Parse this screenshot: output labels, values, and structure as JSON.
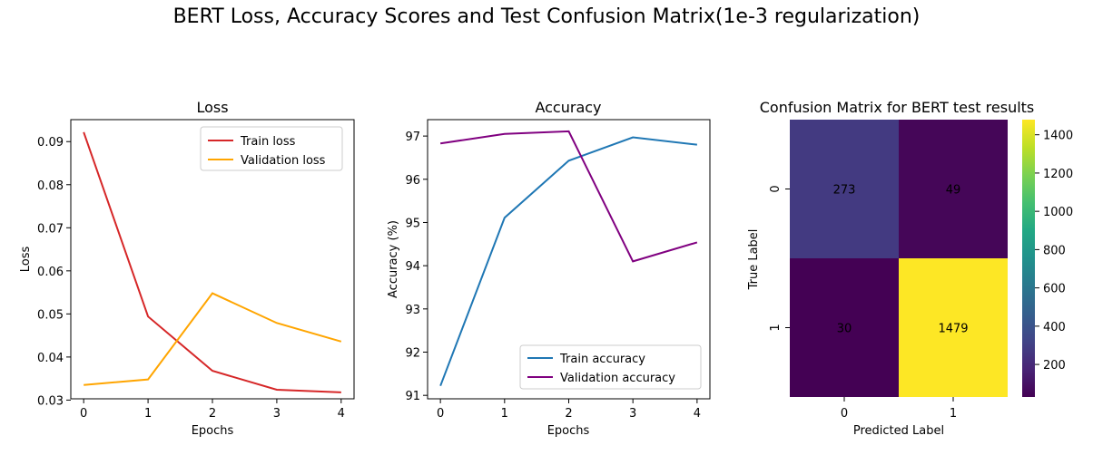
{
  "suptitle": "BERT Loss, Accuracy Scores and Test Confusion Matrix(1e-3 regularization)",
  "chart_data": [
    {
      "type": "line",
      "title": "Loss",
      "xlabel": "Epochs",
      "ylabel": "Loss",
      "x": [
        0,
        1,
        2,
        3,
        4
      ],
      "xticks": [
        "0",
        "1",
        "2",
        "3",
        "4"
      ],
      "yticks": [
        "0.03",
        "0.04",
        "0.05",
        "0.06",
        "0.07",
        "0.08",
        "0.09"
      ],
      "xlim": [
        -0.2,
        4.2
      ],
      "ylim": [
        0.0303,
        0.0951
      ],
      "grid": false,
      "legend": "top-right",
      "series": [
        {
          "name": "Train loss",
          "color": "#d62728",
          "values": [
            0.0922,
            0.0494,
            0.0368,
            0.0324,
            0.0318
          ]
        },
        {
          "name": "Validation loss",
          "color": "#ffa500",
          "values": [
            0.0335,
            0.0348,
            0.0548,
            0.0479,
            0.0436
          ]
        }
      ]
    },
    {
      "type": "line",
      "title": "Accuracy",
      "xlabel": "Epochs",
      "ylabel": "Accuracy (%)",
      "x": [
        0,
        1,
        2,
        3,
        4
      ],
      "xticks": [
        "0",
        "1",
        "2",
        "3",
        "4"
      ],
      "yticks": [
        "91",
        "92",
        "93",
        "94",
        "95",
        "96",
        "97"
      ],
      "xlim": [
        -0.2,
        4.2
      ],
      "ylim": [
        90.92,
        97.38
      ],
      "grid": false,
      "legend": "bottom-right",
      "series": [
        {
          "name": "Train accuracy",
          "color": "#1f77b4",
          "values": [
            91.22,
            95.11,
            96.43,
            96.97,
            96.8
          ]
        },
        {
          "name": "Validation accuracy",
          "color": "#800080",
          "values": [
            96.83,
            97.05,
            97.11,
            94.1,
            94.54
          ]
        }
      ]
    },
    {
      "type": "heatmap",
      "title": "Confusion Matrix for BERT test results",
      "xlabel": "Predicted Label",
      "ylabel": "True Label",
      "xticks": [
        "0",
        "1"
      ],
      "yticks": [
        "0",
        "1"
      ],
      "values": [
        [
          273,
          49
        ],
        [
          30,
          1479
        ]
      ],
      "colormap": "viridis",
      "colorbar_ticks": [
        "200",
        "400",
        "600",
        "800",
        "1000",
        "1200",
        "1400"
      ],
      "colorbar_range": [
        30,
        1479
      ],
      "cell_text_colors": {
        "dark_bg": "#ffffff",
        "light_bg": "#000000"
      }
    }
  ]
}
